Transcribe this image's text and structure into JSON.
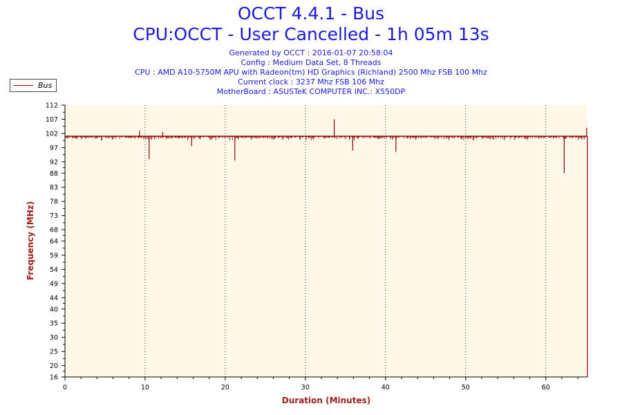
{
  "header": {
    "title": "OCCT 4.4.1 - Bus",
    "subtitle": "CPU:OCCT - User Cancelled - 1h 05m 13s",
    "info_lines": [
      "Generated by OCCT : 2016-01-07 20:58:04",
      "Config : Medium Data Set, 8 Threads",
      "CPU : AMD A10-5750M APU with Radeon(tm) HD Graphics (Richland) 2500 Mhz FSB 100 Mhz",
      "Current clock : 3237 Mhz FSB 106 Mhz",
      "MotherBoard : ASUSTeK COMPUTER INC.: X550DP"
    ]
  },
  "chart_data": {
    "type": "line",
    "title": "OCCT 4.4.1 - Bus",
    "xlabel": "Duration (Minutes)",
    "ylabel": "Frequency (MHz)",
    "xlim": [
      0,
      65.2
    ],
    "ylim": [
      16,
      112
    ],
    "x_ticks": [
      0,
      10,
      20,
      30,
      40,
      50,
      60
    ],
    "y_ticks": [
      16,
      20,
      25,
      30,
      35,
      40,
      44,
      49,
      54,
      59,
      64,
      68,
      73,
      78,
      83,
      88,
      92,
      97,
      102,
      107,
      112
    ],
    "grid": "vertical dotted",
    "legend_placement": "top-left",
    "series": [
      {
        "name": "Bus",
        "color": "#8b0000",
        "baseline": 101,
        "spikes": [
          {
            "x": 9.3,
            "y": 103
          },
          {
            "x": 10.5,
            "y": 93
          },
          {
            "x": 12.2,
            "y": 102.5
          },
          {
            "x": 15.8,
            "y": 97.5
          },
          {
            "x": 21.2,
            "y": 92.5
          },
          {
            "x": 33.6,
            "y": 107
          },
          {
            "x": 35.9,
            "y": 96
          },
          {
            "x": 41.3,
            "y": 95.5
          },
          {
            "x": 62.3,
            "y": 88
          },
          {
            "x": 65.1,
            "y": 104
          },
          {
            "x": 65.2,
            "y": 16
          }
        ]
      }
    ]
  }
}
